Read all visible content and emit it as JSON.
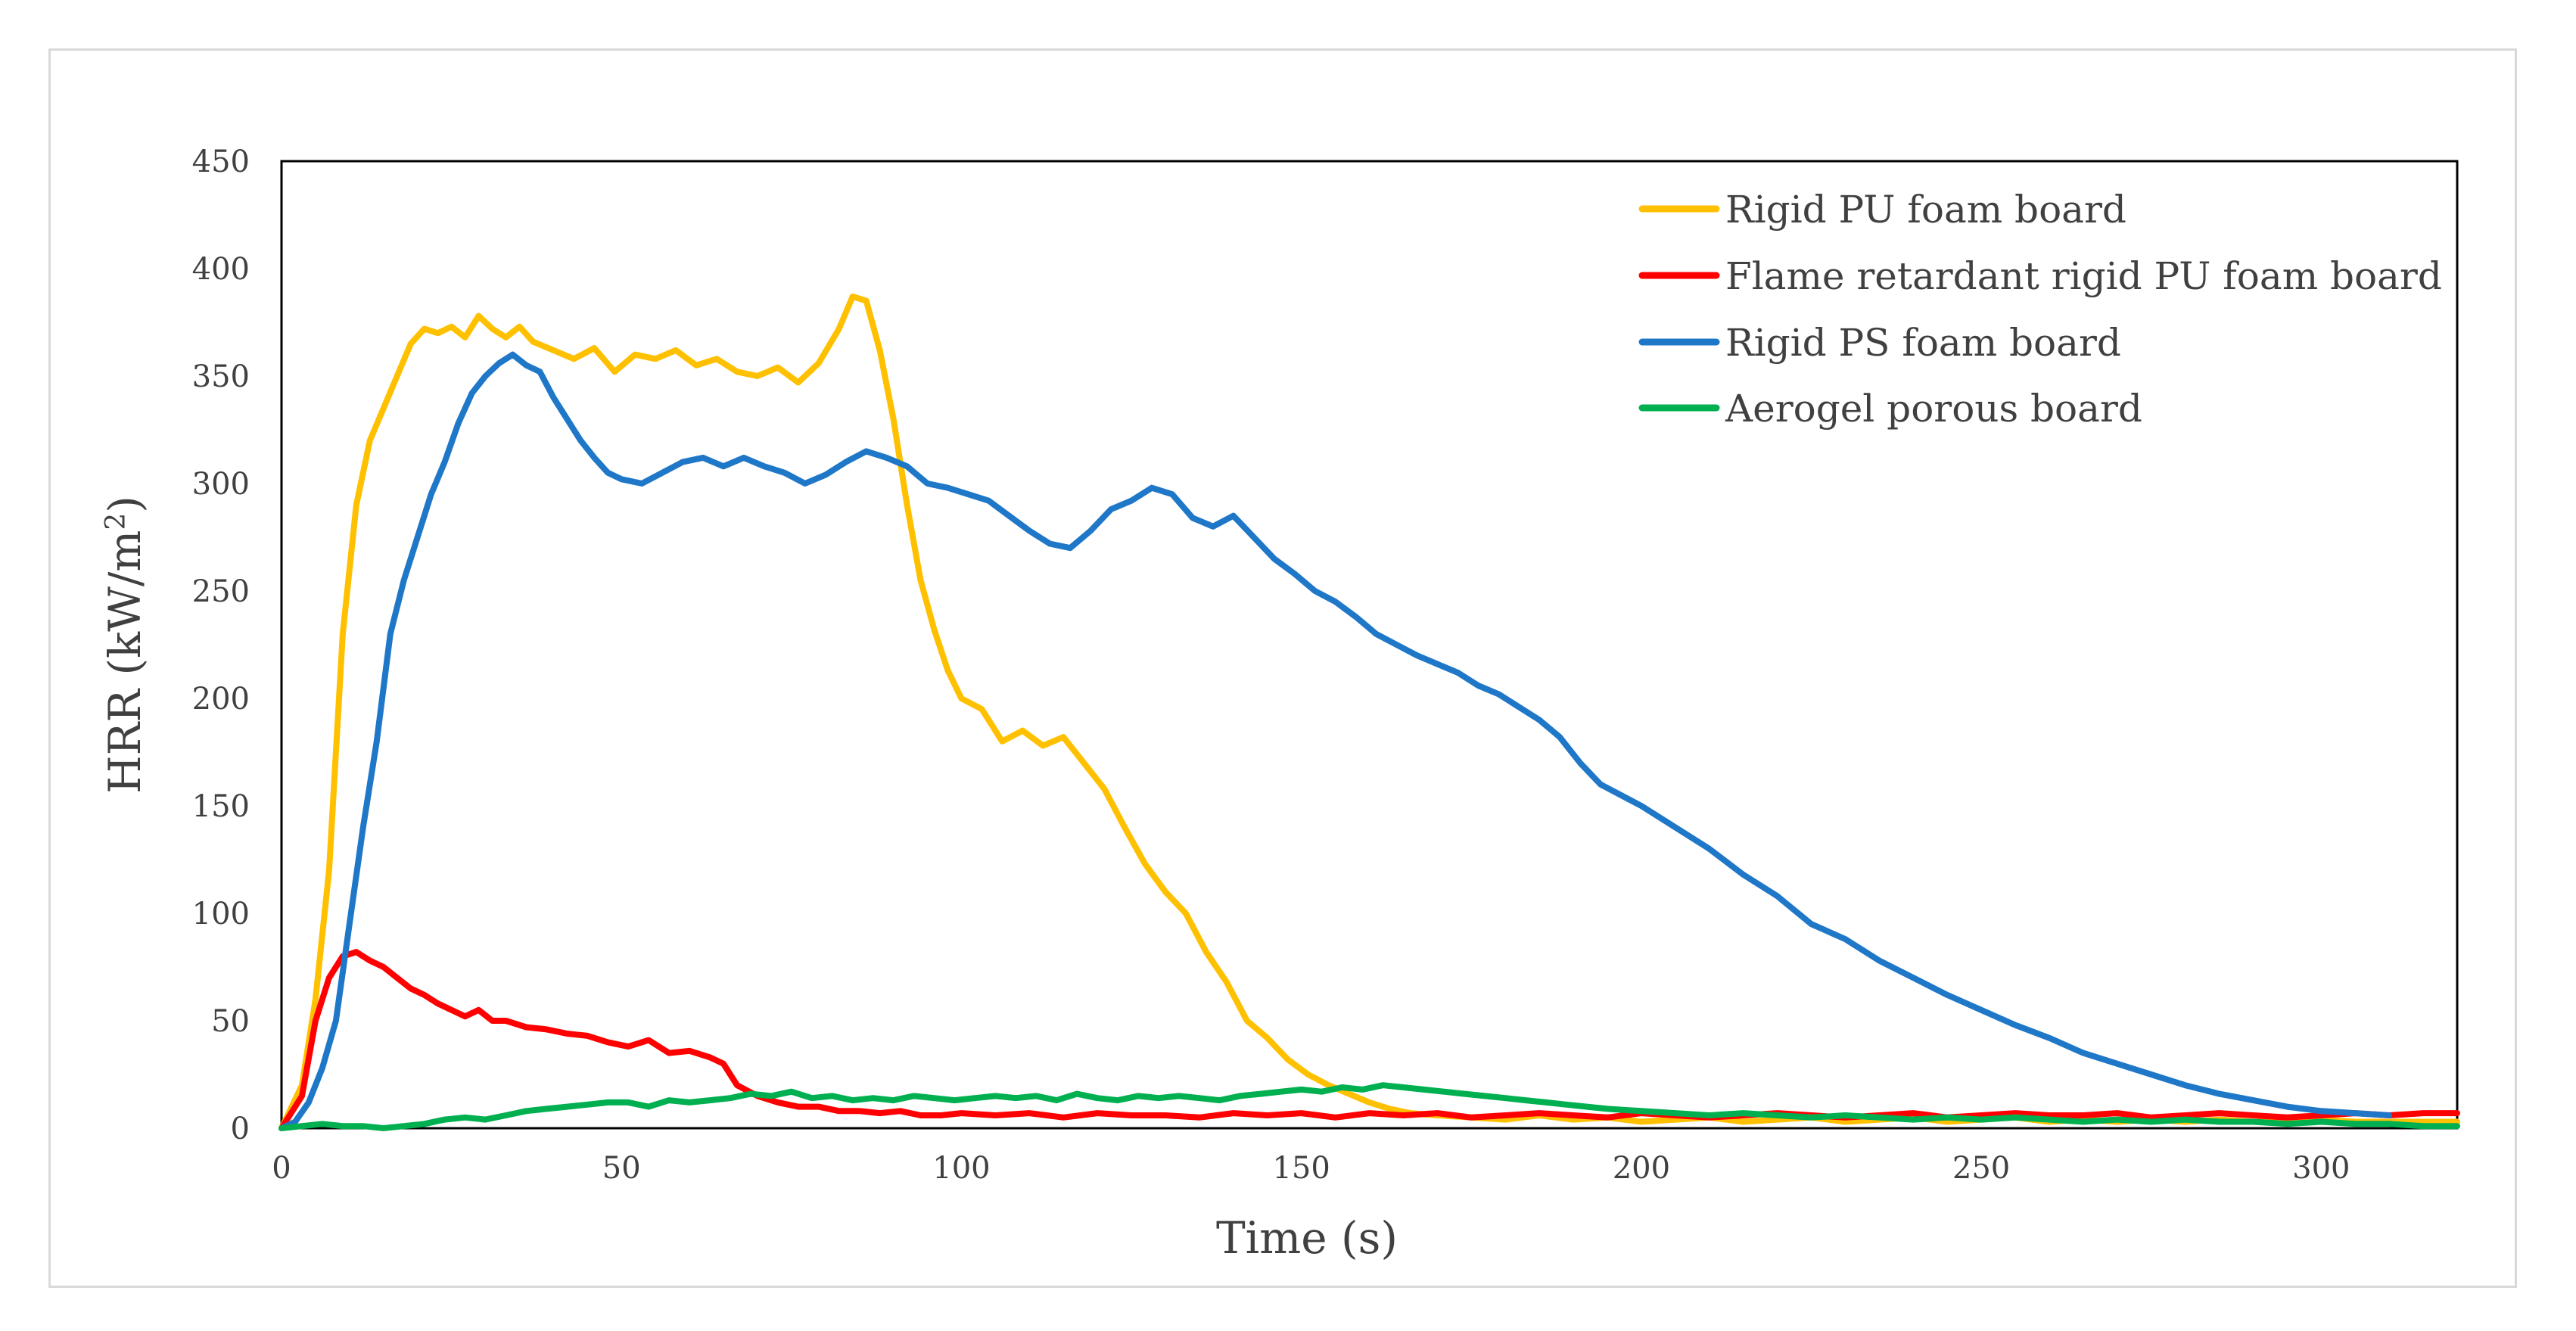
{
  "chart_data": {
    "type": "line",
    "title": "",
    "xlabel": "Time (s)",
    "ylabel_main": "HRR (kW/m",
    "ylabel_sup": "2",
    "ylabel_close": ")",
    "xlim": [
      0,
      320
    ],
    "ylim": [
      0,
      450
    ],
    "xticks": [
      0,
      50,
      100,
      150,
      200,
      250,
      300
    ],
    "yticks": [
      0,
      50,
      100,
      150,
      200,
      250,
      300,
      350,
      400,
      450
    ],
    "grid": false,
    "legend_position": "top-right",
    "series": [
      {
        "name": "Rigid PU foam board",
        "color": "#FFC000",
        "x": [
          0,
          3,
          5,
          7,
          9,
          11,
          13,
          15,
          17,
          19,
          21,
          23,
          25,
          27,
          29,
          31,
          33,
          35,
          37,
          40,
          43,
          46,
          49,
          52,
          55,
          58,
          61,
          64,
          67,
          70,
          73,
          76,
          79,
          82,
          84,
          86,
          88,
          90,
          92,
          94,
          96,
          98,
          100,
          103,
          106,
          109,
          112,
          115,
          118,
          121,
          124,
          127,
          130,
          133,
          136,
          139,
          142,
          145,
          148,
          151,
          154,
          157,
          160,
          163,
          166,
          170,
          175,
          180,
          185,
          190,
          195,
          200,
          205,
          210,
          215,
          220,
          225,
          230,
          235,
          240,
          245,
          250,
          255,
          260,
          265,
          270,
          275,
          280,
          285,
          290,
          295,
          300,
          305,
          310,
          315,
          320
        ],
        "values": [
          0,
          20,
          60,
          120,
          230,
          290,
          320,
          335,
          350,
          365,
          372,
          370,
          373,
          368,
          378,
          372,
          368,
          373,
          366,
          362,
          358,
          363,
          352,
          360,
          358,
          362,
          355,
          358,
          352,
          350,
          354,
          347,
          356,
          372,
          387,
          385,
          362,
          330,
          290,
          255,
          232,
          213,
          200,
          195,
          180,
          185,
          178,
          182,
          170,
          158,
          140,
          123,
          110,
          100,
          82,
          68,
          50,
          42,
          32,
          25,
          20,
          16,
          12,
          9,
          7,
          6,
          5,
          4,
          6,
          4,
          5,
          3,
          4,
          5,
          3,
          4,
          5,
          3,
          4,
          5,
          3,
          4,
          5,
          3,
          4,
          3,
          4,
          3,
          4,
          3,
          3,
          4,
          3,
          3,
          3,
          3
        ]
      },
      {
        "name": "Flame retardant rigid PU foam board",
        "color": "#FF0000",
        "x": [
          0,
          3,
          5,
          7,
          9,
          11,
          13,
          15,
          17,
          19,
          21,
          23,
          25,
          27,
          29,
          31,
          33,
          36,
          39,
          42,
          45,
          48,
          51,
          54,
          57,
          60,
          63,
          65,
          67,
          70,
          73,
          76,
          79,
          82,
          85,
          88,
          91,
          94,
          97,
          100,
          105,
          110,
          115,
          120,
          125,
          130,
          135,
          140,
          145,
          150,
          155,
          160,
          165,
          170,
          175,
          180,
          185,
          190,
          195,
          200,
          205,
          210,
          215,
          220,
          225,
          230,
          235,
          240,
          245,
          250,
          255,
          260,
          265,
          270,
          275,
          280,
          285,
          290,
          295,
          300,
          305,
          310,
          315,
          320
        ],
        "values": [
          0,
          15,
          50,
          70,
          80,
          82,
          78,
          75,
          70,
          65,
          62,
          58,
          55,
          52,
          55,
          50,
          50,
          47,
          46,
          44,
          43,
          40,
          38,
          41,
          35,
          36,
          33,
          30,
          20,
          15,
          12,
          10,
          10,
          8,
          8,
          7,
          8,
          6,
          6,
          7,
          6,
          7,
          5,
          7,
          6,
          6,
          5,
          7,
          6,
          7,
          5,
          7,
          6,
          7,
          5,
          6,
          7,
          6,
          5,
          7,
          6,
          5,
          6,
          7,
          6,
          5,
          6,
          7,
          5,
          6,
          7,
          6,
          6,
          7,
          5,
          6,
          7,
          6,
          5,
          6,
          7,
          6,
          7,
          7
        ]
      },
      {
        "name": "Rigid PS foam board",
        "color": "#1F77C8",
        "x": [
          0,
          2,
          4,
          6,
          8,
          10,
          12,
          14,
          16,
          18,
          20,
          22,
          24,
          26,
          28,
          30,
          32,
          34,
          36,
          38,
          40,
          42,
          44,
          46,
          48,
          50,
          53,
          56,
          59,
          62,
          65,
          68,
          71,
          74,
          77,
          80,
          83,
          86,
          89,
          92,
          95,
          98,
          101,
          104,
          107,
          110,
          113,
          116,
          119,
          122,
          125,
          128,
          131,
          134,
          137,
          140,
          143,
          146,
          149,
          152,
          155,
          158,
          161,
          164,
          167,
          170,
          173,
          176,
          179,
          182,
          185,
          188,
          191,
          194,
          197,
          200,
          205,
          210,
          215,
          220,
          225,
          230,
          235,
          240,
          245,
          250,
          255,
          260,
          265,
          270,
          275,
          280,
          285,
          290,
          295,
          300,
          305,
          310
        ],
        "values": [
          0,
          3,
          12,
          28,
          50,
          95,
          140,
          180,
          230,
          255,
          275,
          295,
          310,
          328,
          342,
          350,
          356,
          360,
          355,
          352,
          340,
          330,
          320,
          312,
          305,
          302,
          300,
          305,
          310,
          312,
          308,
          312,
          308,
          305,
          300,
          304,
          310,
          315,
          312,
          308,
          300,
          298,
          295,
          292,
          285,
          278,
          272,
          270,
          278,
          288,
          292,
          298,
          295,
          284,
          280,
          285,
          275,
          265,
          258,
          250,
          245,
          238,
          230,
          225,
          220,
          216,
          212,
          206,
          202,
          196,
          190,
          182,
          170,
          160,
          155,
          150,
          140,
          130,
          118,
          108,
          95,
          88,
          78,
          70,
          62,
          55,
          48,
          42,
          35,
          30,
          25,
          20,
          16,
          13,
          10,
          8,
          7,
          6
        ]
      },
      {
        "name": "Aerogel porous board",
        "color": "#00B050",
        "x": [
          0,
          3,
          6,
          9,
          12,
          15,
          18,
          21,
          24,
          27,
          30,
          33,
          36,
          39,
          42,
          45,
          48,
          51,
          54,
          57,
          60,
          63,
          66,
          69,
          72,
          75,
          78,
          81,
          84,
          87,
          90,
          93,
          96,
          99,
          102,
          105,
          108,
          111,
          114,
          117,
          120,
          123,
          126,
          129,
          132,
          135,
          138,
          141,
          144,
          147,
          150,
          153,
          156,
          159,
          162,
          165,
          168,
          171,
          174,
          177,
          180,
          183,
          186,
          189,
          192,
          195,
          200,
          205,
          210,
          215,
          220,
          225,
          230,
          235,
          240,
          245,
          250,
          255,
          260,
          265,
          270,
          275,
          280,
          285,
          290,
          295,
          300,
          305,
          310,
          315,
          320
        ],
        "values": [
          0,
          1,
          2,
          1,
          1,
          0,
          1,
          2,
          4,
          5,
          4,
          6,
          8,
          9,
          10,
          11,
          12,
          12,
          10,
          13,
          12,
          13,
          14,
          16,
          15,
          17,
          14,
          15,
          13,
          14,
          13,
          15,
          14,
          13,
          14,
          15,
          14,
          15,
          13,
          16,
          14,
          13,
          15,
          14,
          15,
          14,
          13,
          15,
          16,
          17,
          18,
          17,
          19,
          18,
          20,
          19,
          18,
          17,
          16,
          15,
          14,
          13,
          12,
          11,
          10,
          9,
          8,
          7,
          6,
          7,
          6,
          5,
          6,
          5,
          4,
          5,
          4,
          5,
          4,
          3,
          4,
          3,
          4,
          3,
          3,
          2,
          3,
          2,
          2,
          1,
          1
        ]
      }
    ]
  }
}
